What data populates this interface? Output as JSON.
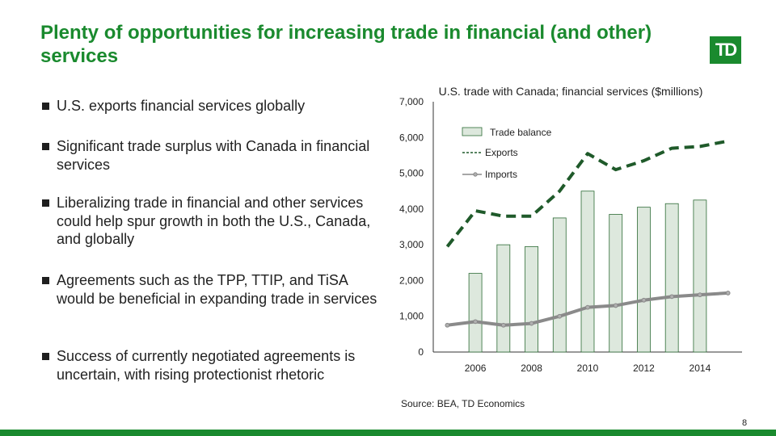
{
  "slide": {
    "title": "Plenty of opportunities for increasing trade in financial (and other) services",
    "logo_text": "TD",
    "bullets": [
      "U.S. exports financial services globally",
      "Significant trade surplus with Canada in financial services",
      "Liberalizing trade in financial and other services could help spur growth in both the U.S., Canada, and globally",
      "Agreements such as the TPP, TTIP, and TiSA would be beneficial in expanding trade in services",
      "Success of currently negotiated agreements is uncertain, with rising protectionist rhetoric"
    ],
    "source": "Source: BEA, TD Economics",
    "page_number": "8"
  },
  "colors": {
    "brand_green": "#1a8a2e",
    "bar_fill": "#dde8dd",
    "bar_stroke": "#2d6b35",
    "exports_line": "#1f5a2a",
    "imports_line": "#8a8a8a"
  },
  "chart_data": {
    "type": "bar",
    "title": "U.S. trade with Canada; financial services ($millions)",
    "x": [
      2005,
      2006,
      2007,
      2008,
      2009,
      2010,
      2011,
      2012,
      2013,
      2014,
      2015
    ],
    "x_tick_labels": [
      "2006",
      "2008",
      "2010",
      "2012",
      "2014"
    ],
    "ylim": [
      0,
      7000
    ],
    "y_tick_labels": [
      "0",
      "1,000",
      "2,000",
      "3,000",
      "4,000",
      "5,000",
      "6,000",
      "7,000"
    ],
    "series": [
      {
        "name": "Trade balance",
        "type": "bar",
        "x": [
          2006,
          2007,
          2008,
          2009,
          2010,
          2011,
          2012,
          2013,
          2014
        ],
        "values": [
          2200,
          3000,
          2950,
          3750,
          4500,
          3850,
          4050,
          4150,
          4250
        ]
      },
      {
        "name": "Exports",
        "type": "line",
        "x": [
          2005,
          2006,
          2007,
          2008,
          2009,
          2010,
          2011,
          2012,
          2013,
          2014,
          2015
        ],
        "values": [
          2950,
          3950,
          3800,
          3800,
          4500,
          5550,
          5100,
          5350,
          5700,
          5750,
          5900
        ]
      },
      {
        "name": "Imports",
        "type": "line",
        "x": [
          2005,
          2006,
          2007,
          2008,
          2009,
          2010,
          2011,
          2012,
          2013,
          2014,
          2015
        ],
        "values": [
          750,
          850,
          750,
          800,
          1000,
          1250,
          1300,
          1450,
          1550,
          1600,
          1650
        ]
      }
    ],
    "legend": "top-left"
  }
}
